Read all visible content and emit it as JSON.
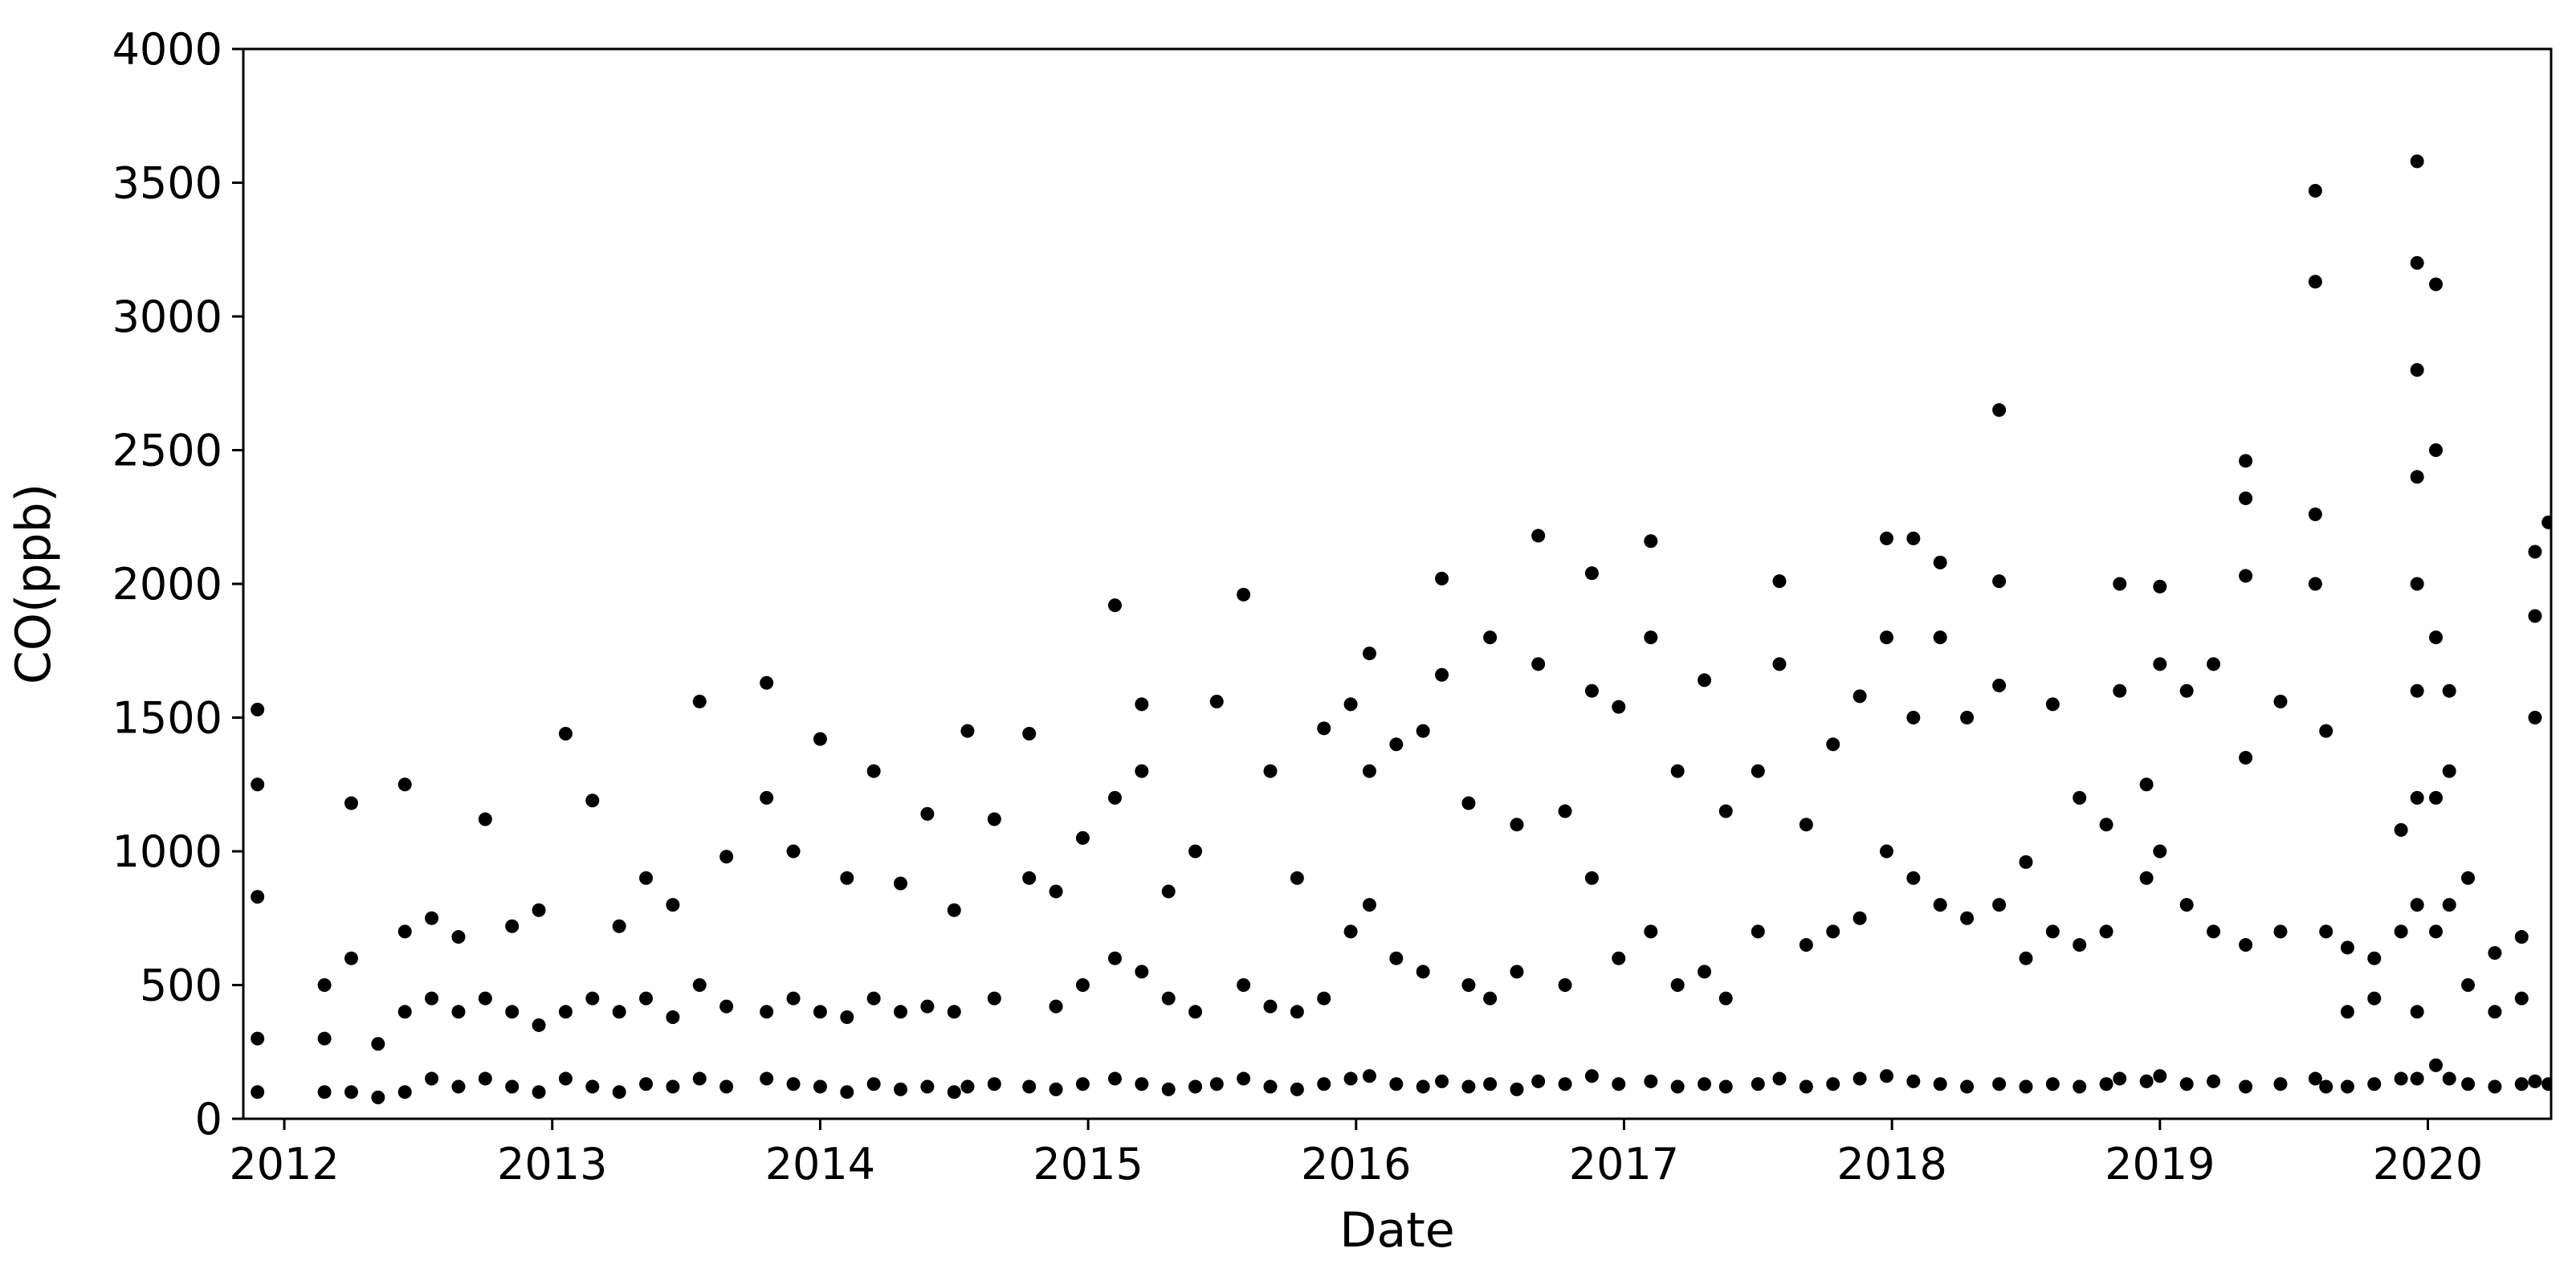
{
  "chart_data": {
    "type": "scatter",
    "xlabel": "Date",
    "ylabel": "CO(ppb)",
    "xlim": [
      2011.847,
      2020.46
    ],
    "xticks": [
      2012,
      2013,
      2014,
      2015,
      2016,
      2017,
      2018,
      2019,
      2020
    ],
    "ylim": [
      0,
      4000
    ],
    "yticks": [
      0,
      500,
      1000,
      1500,
      2000,
      2500,
      3000,
      3500,
      4000
    ],
    "grid": false,
    "series": [
      {
        "color": "#000000",
        "x": [
          2011.9,
          2011.9,
          2011.9,
          2011.9,
          2011.9,
          2012.15,
          2012.15,
          2012.15,
          2012.25,
          2012.25,
          2012.25,
          2012.35,
          2012.35,
          2012.45,
          2012.45,
          2012.45,
          2012.45,
          2012.55,
          2012.55,
          2012.55,
          2012.65,
          2012.65,
          2012.65,
          2012.75,
          2012.75,
          2012.75,
          2012.85,
          2012.85,
          2012.85,
          2012.95,
          2012.95,
          2012.95,
          2013.05,
          2013.05,
          2013.05,
          2013.15,
          2013.15,
          2013.15,
          2013.25,
          2013.25,
          2013.25,
          2013.35,
          2013.35,
          2013.35,
          2013.45,
          2013.45,
          2013.45,
          2013.55,
          2013.55,
          2013.55,
          2013.65,
          2013.65,
          2013.65,
          2013.8,
          2013.8,
          2013.8,
          2013.8,
          2013.9,
          2013.9,
          2013.9,
          2014.0,
          2014.0,
          2014.0,
          2014.1,
          2014.1,
          2014.1,
          2014.2,
          2014.2,
          2014.2,
          2014.3,
          2014.3,
          2014.3,
          2014.4,
          2014.4,
          2014.4,
          2014.5,
          2014.5,
          2014.5,
          2014.55,
          2014.55,
          2014.65,
          2014.65,
          2014.65,
          2014.78,
          2014.78,
          2014.78,
          2014.88,
          2014.88,
          2014.88,
          2014.98,
          2014.98,
          2014.98,
          2015.1,
          2015.1,
          2015.1,
          2015.1,
          2015.2,
          2015.2,
          2015.2,
          2015.2,
          2015.3,
          2015.3,
          2015.3,
          2015.4,
          2015.4,
          2015.4,
          2015.48,
          2015.48,
          2015.58,
          2015.58,
          2015.58,
          2015.68,
          2015.68,
          2015.68,
          2015.78,
          2015.78,
          2015.78,
          2015.88,
          2015.88,
          2015.88,
          2015.98,
          2015.98,
          2015.98,
          2016.05,
          2016.05,
          2016.05,
          2016.05,
          2016.15,
          2016.15,
          2016.15,
          2016.25,
          2016.25,
          2016.25,
          2016.32,
          2016.32,
          2016.32,
          2016.42,
          2016.42,
          2016.42,
          2016.5,
          2016.5,
          2016.5,
          2016.6,
          2016.6,
          2016.6,
          2016.68,
          2016.68,
          2016.68,
          2016.78,
          2016.78,
          2016.78,
          2016.88,
          2016.88,
          2016.88,
          2016.88,
          2016.98,
          2016.98,
          2016.98,
          2017.1,
          2017.1,
          2017.1,
          2017.1,
          2017.2,
          2017.2,
          2017.2,
          2017.3,
          2017.3,
          2017.3,
          2017.38,
          2017.38,
          2017.38,
          2017.5,
          2017.5,
          2017.5,
          2017.58,
          2017.58,
          2017.58,
          2017.68,
          2017.68,
          2017.68,
          2017.78,
          2017.78,
          2017.78,
          2017.88,
          2017.88,
          2017.88,
          2017.98,
          2017.98,
          2017.98,
          2017.98,
          2018.08,
          2018.08,
          2018.08,
          2018.08,
          2018.18,
          2018.18,
          2018.18,
          2018.18,
          2018.28,
          2018.28,
          2018.28,
          2018.4,
          2018.4,
          2018.4,
          2018.4,
          2018.4,
          2018.5,
          2018.5,
          2018.5,
          2018.6,
          2018.6,
          2018.6,
          2018.7,
          2018.7,
          2018.7,
          2018.8,
          2018.8,
          2018.8,
          2018.85,
          2018.85,
          2018.85,
          2018.95,
          2018.95,
          2018.95,
          2019.0,
          2019.0,
          2019.0,
          2019.0,
          2019.1,
          2019.1,
          2019.1,
          2019.2,
          2019.2,
          2019.2,
          2019.32,
          2019.32,
          2019.32,
          2019.32,
          2019.32,
          2019.32,
          2019.45,
          2019.45,
          2019.45,
          2019.58,
          2019.58,
          2019.58,
          2019.58,
          2019.58,
          2019.62,
          2019.62,
          2019.62,
          2019.7,
          2019.7,
          2019.7,
          2019.8,
          2019.8,
          2019.8,
          2019.9,
          2019.9,
          2019.9,
          2019.96,
          2019.96,
          2019.96,
          2019.96,
          2019.96,
          2019.96,
          2019.96,
          2019.96,
          2019.96,
          2019.96,
          2020.03,
          2020.03,
          2020.03,
          2020.03,
          2020.03,
          2020.03,
          2020.08,
          2020.08,
          2020.08,
          2020.08,
          2020.15,
          2020.15,
          2020.15,
          2020.25,
          2020.25,
          2020.25,
          2020.35,
          2020.35,
          2020.35,
          2020.4,
          2020.4,
          2020.4,
          2020.4,
          2020.45,
          2020.45
        ],
        "values": [
          1530,
          1250,
          830,
          300,
          100,
          500,
          300,
          100,
          1180,
          600,
          100,
          280,
          80,
          1250,
          700,
          400,
          100,
          750,
          450,
          150,
          680,
          400,
          120,
          1120,
          450,
          150,
          720,
          400,
          120,
          780,
          350,
          100,
          1440,
          400,
          150,
          1190,
          450,
          120,
          720,
          400,
          100,
          900,
          450,
          130,
          800,
          380,
          120,
          1560,
          500,
          150,
          980,
          420,
          120,
          1630,
          1200,
          400,
          150,
          1000,
          450,
          130,
          1420,
          400,
          120,
          900,
          380,
          100,
          1300,
          450,
          130,
          880,
          400,
          110,
          1140,
          420,
          120,
          780,
          400,
          100,
          1450,
          120,
          1120,
          450,
          130,
          1440,
          900,
          120,
          850,
          420,
          110,
          1050,
          500,
          130,
          1920,
          1200,
          600,
          150,
          1550,
          1300,
          550,
          130,
          850,
          450,
          110,
          1000,
          400,
          120,
          1560,
          130,
          1960,
          500,
          150,
          1300,
          420,
          120,
          900,
          400,
          110,
          1460,
          450,
          130,
          1550,
          700,
          150,
          1740,
          1300,
          800,
          160,
          1400,
          600,
          130,
          1450,
          550,
          120,
          2020,
          1660,
          140,
          1180,
          500,
          120,
          1800,
          450,
          130,
          1100,
          550,
          110,
          2180,
          1700,
          140,
          1150,
          500,
          130,
          2040,
          1600,
          900,
          160,
          1540,
          600,
          130,
          2160,
          1800,
          700,
          140,
          1300,
          500,
          120,
          1640,
          550,
          130,
          1150,
          450,
          120,
          1300,
          700,
          130,
          2010,
          1700,
          150,
          1100,
          650,
          120,
          1400,
          700,
          130,
          1580,
          750,
          150,
          2170,
          1800,
          1000,
          160,
          2170,
          1500,
          900,
          140,
          2080,
          1800,
          800,
          130,
          1500,
          750,
          120,
          2650,
          2010,
          1620,
          800,
          130,
          960,
          600,
          120,
          1550,
          700,
          130,
          1200,
          650,
          120,
          1100,
          700,
          130,
          2000,
          1600,
          150,
          1250,
          900,
          140,
          1990,
          1700,
          1000,
          160,
          1600,
          800,
          130,
          1700,
          700,
          140,
          2460,
          2320,
          2030,
          1350,
          650,
          120,
          1560,
          700,
          130,
          3470,
          3130,
          2260,
          2000,
          150,
          1450,
          700,
          120,
          640,
          400,
          120,
          600,
          450,
          130,
          1080,
          700,
          150,
          3580,
          3200,
          2800,
          2400,
          2000,
          1600,
          1200,
          800,
          400,
          150,
          3120,
          2500,
          1800,
          1200,
          700,
          200,
          1600,
          1300,
          800,
          150,
          900,
          500,
          130,
          620,
          400,
          120,
          680,
          450,
          130,
          2120,
          1880,
          1500,
          140,
          2230,
          130
        ]
      }
    ]
  }
}
